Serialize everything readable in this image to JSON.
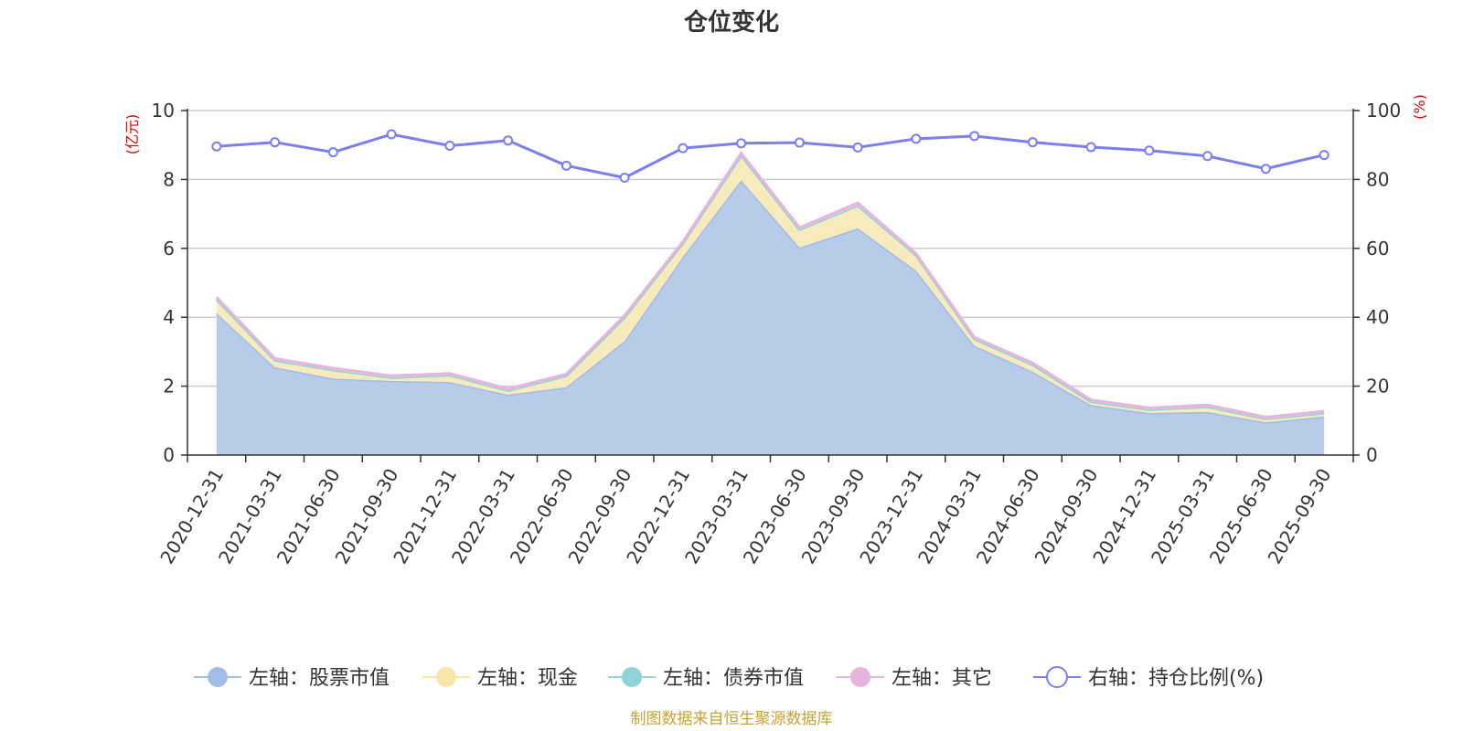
{
  "title": "仓位变化",
  "source_note": "制图数据来自恒生聚源数据库",
  "chart_data": {
    "type": "area",
    "title": "仓位变化",
    "categories": [
      "2020-12-31",
      "2021-03-31",
      "2021-06-30",
      "2021-09-30",
      "2021-12-31",
      "2022-03-31",
      "2022-06-30",
      "2022-09-30",
      "2022-12-31",
      "2023-03-31",
      "2023-06-30",
      "2023-09-30",
      "2023-12-31",
      "2024-03-31",
      "2024-06-30",
      "2024-09-30",
      "2024-12-31",
      "2025-03-31",
      "2025-06-30",
      "2025-09-30"
    ],
    "left_axis": {
      "unit": "(亿元)",
      "ylim": [
        0,
        10
      ],
      "ticks": [
        "0",
        "2",
        "4",
        "6",
        "8",
        "10"
      ]
    },
    "right_axis": {
      "unit": "(%)",
      "ylim": [
        0,
        100
      ],
      "ticks": [
        "0",
        "20",
        "40",
        "60",
        "80",
        "100"
      ]
    },
    "grid": true,
    "legend_position": "bottom",
    "series": [
      {
        "name": "左轴：股票市值",
        "axis": "left",
        "stacked": true,
        "color": "#a3bce4",
        "fill": "#b8cbe9",
        "values": [
          4.12,
          2.55,
          2.22,
          2.15,
          2.12,
          1.75,
          1.97,
          3.31,
          5.75,
          7.98,
          6.02,
          6.58,
          5.35,
          3.17,
          2.42,
          1.45,
          1.22,
          1.25,
          0.95,
          1.12
        ]
      },
      {
        "name": "左轴：现金",
        "axis": "left",
        "stacked": true,
        "color": "#f7e6a7",
        "fill": "#f7ebbd",
        "values": [
          0.4,
          0.2,
          0.25,
          0.1,
          0.2,
          0.12,
          0.33,
          0.69,
          0.4,
          0.72,
          0.52,
          0.67,
          0.45,
          0.2,
          0.2,
          0.1,
          0.1,
          0.15,
          0.1,
          0.1
        ]
      },
      {
        "name": "左轴：债券市值",
        "axis": "left",
        "stacked": true,
        "color": "#8fd3d6",
        "fill": "#b9e4e5",
        "values": [
          0,
          0,
          0,
          0,
          0,
          0,
          0,
          0,
          0,
          0,
          0,
          0,
          0,
          0,
          0,
          0,
          0,
          0,
          0,
          0
        ]
      },
      {
        "name": "左轴：其它",
        "axis": "left",
        "stacked": true,
        "color": "#e7b4db",
        "fill": "#f0cde8",
        "values": [
          0.06,
          0.05,
          0.05,
          0.05,
          0.05,
          0.05,
          0.05,
          0.05,
          0.05,
          0.06,
          0.06,
          0.07,
          0.05,
          0.05,
          0.05,
          0.05,
          0.05,
          0.05,
          0.05,
          0.05
        ]
      },
      {
        "name": "右轴：持仓比例(%)",
        "axis": "right",
        "type": "line",
        "color": "#7a7ef0",
        "values": [
          89.6,
          90.8,
          87.9,
          93.1,
          89.8,
          91.3,
          84.0,
          80.5,
          89.1,
          90.5,
          90.7,
          89.3,
          91.8,
          92.6,
          90.8,
          89.4,
          88.4,
          86.8,
          83.1,
          87.1
        ]
      }
    ]
  }
}
